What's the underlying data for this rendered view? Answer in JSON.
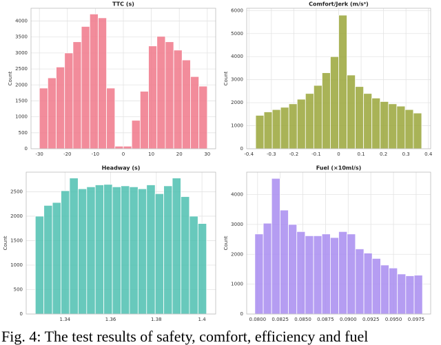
{
  "chart_data": [
    {
      "type": "histogram",
      "title": "TTC (s)",
      "ylabel": "Count",
      "color": "#f0788a",
      "grid": true,
      "bins": [
        -30,
        -27,
        -24,
        -21,
        -18,
        -15,
        -12,
        -9,
        -6,
        -3,
        0,
        3,
        6,
        9,
        12,
        15,
        18,
        21,
        24,
        27,
        30
      ],
      "values": [
        1900,
        2220,
        2560,
        3000,
        3350,
        3830,
        4220,
        4100,
        1900,
        80,
        80,
        890,
        1800,
        3220,
        3520,
        3350,
        3090,
        2780,
        2260,
        1960
      ],
      "xlim": [
        -33,
        33
      ],
      "xticks": [
        -30,
        -20,
        -10,
        0,
        10,
        20,
        30
      ],
      "ylim": [
        0,
        4400
      ],
      "yticks": [
        0,
        500,
        1000,
        1500,
        2000,
        2500,
        3000,
        3500,
        4000
      ]
    },
    {
      "type": "histogram",
      "title": "Comfort/Jerk (m/s³)",
      "ylabel": "Count",
      "color": "#9aa63a",
      "grid": true,
      "bins": [
        -0.37,
        -0.333,
        -0.296,
        -0.259,
        -0.222,
        -0.185,
        -0.148,
        -0.111,
        -0.074,
        -0.037,
        0,
        0.037,
        0.074,
        0.111,
        0.148,
        0.185,
        0.222,
        0.259,
        0.296,
        0.333,
        0.37
      ],
      "values": [
        1450,
        1600,
        1700,
        1800,
        1950,
        2150,
        2400,
        2750,
        3300,
        4000,
        5800,
        3200,
        2700,
        2400,
        2200,
        2050,
        1950,
        1850,
        1700,
        1550
      ],
      "xlim": [
        -0.41,
        0.41
      ],
      "xticks": [
        -0.4,
        -0.3,
        -0.2,
        -0.1,
        0.0,
        0.1,
        0.2,
        0.3,
        0.4
      ],
      "ylim": [
        0,
        6100
      ],
      "yticks": [
        0,
        1000,
        2000,
        3000,
        4000,
        5000,
        6000
      ]
    },
    {
      "type": "histogram",
      "title": "Headway (s)",
      "ylabel": "Count",
      "color": "#4dbfb0",
      "grid": true,
      "bins": [
        1.327,
        1.33075,
        1.3345,
        1.33825,
        1.342,
        1.34575,
        1.3495,
        1.35325,
        1.357,
        1.36075,
        1.3645,
        1.36825,
        1.372,
        1.37575,
        1.3795,
        1.38325,
        1.387,
        1.39075,
        1.3945,
        1.39825,
        1.402
      ],
      "values": [
        2000,
        2220,
        2280,
        2520,
        2780,
        2560,
        2600,
        2640,
        2650,
        2600,
        2620,
        2600,
        2560,
        2640,
        2460,
        2620,
        2780,
        2400,
        2000,
        1850
      ],
      "xlim": [
        1.323,
        1.406
      ],
      "xticks": [
        1.34,
        1.36,
        1.38,
        1.4
      ],
      "ylim": [
        0,
        2900
      ],
      "yticks": [
        0,
        500,
        1000,
        1500,
        2000,
        2500
      ]
    },
    {
      "type": "histogram",
      "title": "Fuel (×10ml/s)",
      "ylabel": "Count",
      "color": "#a88cf0",
      "grid": true,
      "bins": [
        0.0797,
        0.08063,
        0.08155,
        0.08248,
        0.0834,
        0.08433,
        0.08525,
        0.08618,
        0.0871,
        0.08803,
        0.08895,
        0.08988,
        0.0908,
        0.09173,
        0.09265,
        0.09358,
        0.0945,
        0.09543,
        0.09635,
        0.09728,
        0.0982
      ],
      "values": [
        2680,
        3040,
        4540,
        3480,
        3000,
        2760,
        2620,
        2620,
        2680,
        2560,
        2760,
        2680,
        2180,
        2040,
        1860,
        1640,
        1540,
        1340,
        1280,
        1300
      ],
      "xlim": [
        0.0788,
        0.0991
      ],
      "xticks": [
        {
          "value": 0.08,
          "label": "0.0800"
        },
        {
          "value": 0.0825,
          "label": "0.0825"
        },
        {
          "value": 0.085,
          "label": "0.0850"
        },
        {
          "value": 0.0875,
          "label": "0.0875"
        },
        {
          "value": 0.09,
          "label": "0.0900"
        },
        {
          "value": 0.0925,
          "label": "0.0925"
        },
        {
          "value": 0.095,
          "label": "0.0950"
        },
        {
          "value": 0.0975,
          "label": "0.0975"
        }
      ],
      "ylim": [
        0,
        4750
      ],
      "yticks": [
        0,
        1000,
        2000,
        3000,
        4000
      ]
    }
  ],
  "caption": "Fig. 4: The test results of safety, comfort, efficiency and fuel"
}
